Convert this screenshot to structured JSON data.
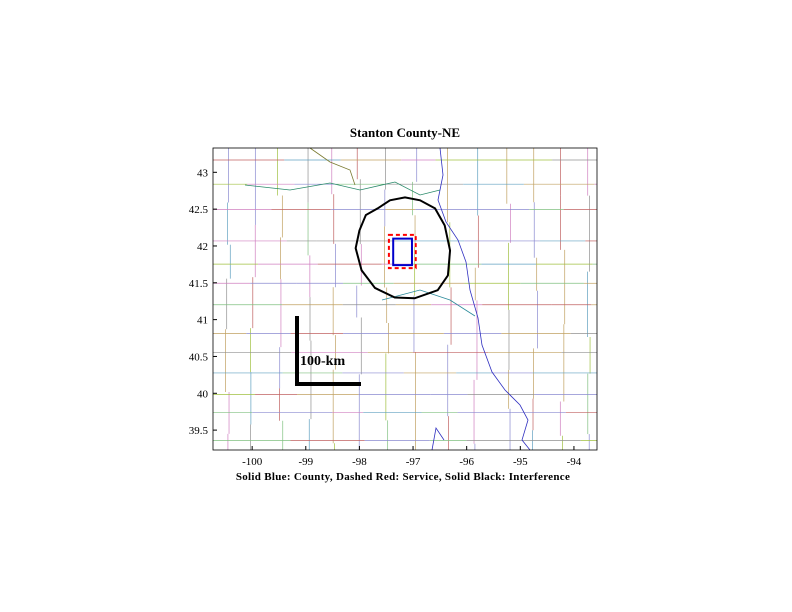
{
  "chart_data": {
    "type": "map",
    "title": "Stanton County-NE",
    "xlabel": "Solid Blue: County, Dashed Red: Service, Solid Black: Interference",
    "annotation": "100-km",
    "xlim": [
      -100.73,
      -93.57
    ],
    "ylim": [
      39.23,
      43.33
    ],
    "xticks": [
      -100,
      -99,
      -98,
      -97,
      -96,
      -95,
      -94
    ],
    "yticks": [
      39.5,
      40,
      40.5,
      41,
      41.5,
      42,
      42.5,
      43
    ],
    "series": [
      {
        "color": "#000000",
        "style": "solid",
        "x": [
          -97.66,
          -97.43,
          -97.15,
          -96.87,
          -96.59,
          -96.41,
          -96.31,
          -96.35,
          -96.54,
          -96.97,
          -97.34,
          -97.71,
          -97.96,
          -98.07,
          -98.0,
          -97.88
        ],
        "y": [
          42.51,
          42.62,
          42.66,
          42.62,
          42.51,
          42.28,
          41.94,
          41.6,
          41.4,
          41.29,
          41.3,
          41.43,
          41.67,
          41.97,
          42.21,
          42.42
        ]
      },
      {
        "color": "#ff0000",
        "style": "dashed",
        "x": [
          -97.45,
          -96.95,
          -96.95,
          -97.45
        ],
        "y": [
          42.15,
          42.15,
          41.7,
          41.7
        ]
      },
      {
        "color": "#0000cc",
        "style": "solid",
        "x": [
          -97.37,
          -97.02,
          -97.02,
          -97.37
        ],
        "y": [
          42.1,
          42.1,
          41.74,
          41.74
        ]
      }
    ]
  }
}
